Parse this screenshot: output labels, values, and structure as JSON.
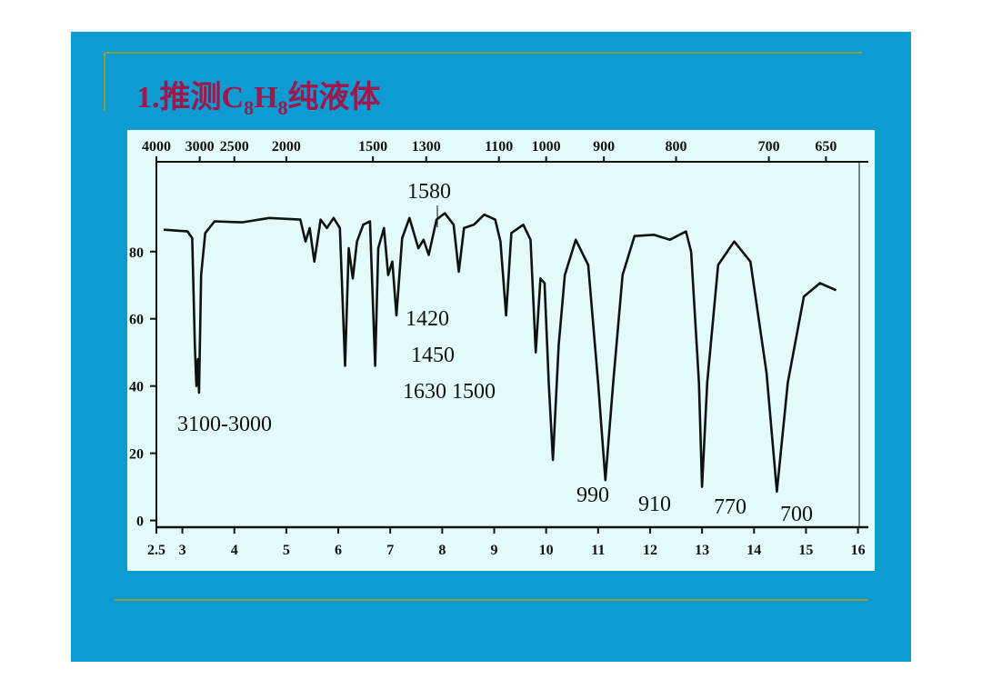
{
  "title_parts": [
    "1.推测C",
    "8",
    "H",
    "8",
    "纯液体"
  ],
  "chart_data": {
    "type": "line",
    "x": [
      2.64,
      3.1,
      3.19,
      3.24,
      3.27,
      3.3,
      3.32,
      3.36,
      3.44,
      3.62,
      4.15,
      4.67,
      5.27,
      5.37,
      5.45,
      5.54,
      5.66,
      5.78,
      5.91,
      6.03,
      6.13,
      6.2,
      6.28,
      6.36,
      6.48,
      6.61,
      6.71,
      6.77,
      6.88,
      6.96,
      7.04,
      7.12,
      7.23,
      7.37,
      7.54,
      7.64,
      7.74,
      7.89,
      8.05,
      8.22,
      8.32,
      8.42,
      8.61,
      8.81,
      9.02,
      9.12,
      9.23,
      9.33,
      9.56,
      9.7,
      9.8,
      9.89,
      9.97,
      10.05,
      10.13,
      10.24,
      10.36,
      10.57,
      10.81,
      11.0,
      11.14,
      11.29,
      11.47,
      11.7,
      12.07,
      12.38,
      12.69,
      12.79,
      12.94,
      13.0,
      13.1,
      13.31,
      13.62,
      13.93,
      14.24,
      14.44,
      14.65,
      14.96,
      15.27,
      15.58
    ],
    "series": [
      {
        "color": "#111111",
        "values": [
          86.5,
          86,
          84,
          52,
          40,
          48,
          38,
          73,
          85.5,
          89,
          88.7,
          90,
          89.5,
          83,
          87,
          77,
          89.5,
          87,
          90,
          87,
          46,
          81,
          72,
          83,
          88,
          89,
          46,
          81,
          87,
          73,
          77,
          61,
          84,
          90,
          81,
          83.5,
          79,
          89.5,
          91.4,
          88,
          74,
          87,
          88,
          91,
          89.5,
          83,
          61,
          85.5,
          88,
          83.5,
          50,
          72,
          70.6,
          41,
          18,
          52,
          73,
          83.5,
          76,
          41,
          12,
          41,
          73,
          84.6,
          85,
          83.5,
          86,
          80,
          41,
          10,
          41,
          76,
          83,
          77,
          44,
          8.6,
          41,
          66.6,
          70.6,
          68.5
        ]
      }
    ],
    "xlim": [
      2.5,
      16.2
    ],
    "xticks": [
      2.5,
      3,
      4,
      5,
      6,
      7,
      8,
      9,
      10,
      11,
      12,
      13,
      14,
      15,
      16
    ],
    "x2lim": [
      4000,
      617
    ],
    "x2ticks": [
      4000,
      3000,
      2500,
      2000,
      1500,
      1300,
      1100,
      1000,
      900,
      800,
      700,
      650
    ],
    "ylim": [
      -2,
      104
    ],
    "yticks": [
      0,
      20,
      40,
      60,
      80
    ],
    "annotations": [
      "3100-3000",
      "1580",
      "1630",
      "1500",
      "1450",
      "1420",
      "990",
      "910",
      "770",
      "700"
    ]
  }
}
